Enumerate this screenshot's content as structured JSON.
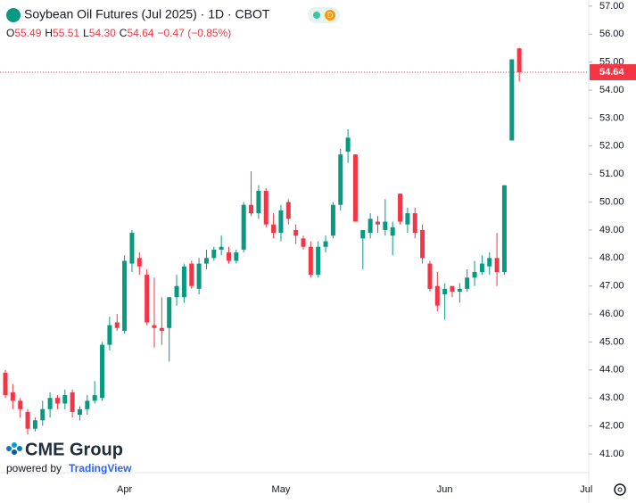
{
  "header": {
    "title": "Soybean Oil Futures (Jul 2025) · 1D · CBOT",
    "badge": "D",
    "ohlc": [
      {
        "key": "O",
        "value": "55.49"
      },
      {
        "key": "H",
        "value": "55.51"
      },
      {
        "key": "L",
        "value": "54.30"
      },
      {
        "key": "C",
        "value": "54.64"
      }
    ],
    "change": "−0.47 (−0.85%)"
  },
  "logo": {
    "brand": "CME Group",
    "powered": "powered by",
    "provider": "TradingView"
  },
  "chart_data": {
    "type": "candlestick",
    "categories": [
      null,
      null,
      null,
      null,
      null,
      null,
      null,
      null,
      null,
      null,
      null,
      null,
      null,
      null,
      null,
      null,
      "Apr",
      null,
      null,
      null,
      null,
      null,
      null,
      null,
      null,
      null,
      null,
      null,
      null,
      null,
      null,
      null,
      null,
      null,
      null,
      null,
      null,
      "May",
      null,
      null,
      null,
      null,
      null,
      null,
      null,
      null,
      null,
      null,
      null,
      null,
      null,
      null,
      null,
      null,
      null,
      null,
      null,
      null,
      null,
      "Jun",
      null,
      null,
      null,
      null,
      null,
      null,
      null,
      null,
      null,
      null,
      null,
      null,
      null,
      null,
      null,
      null,
      null,
      null,
      "Jul"
    ],
    "open": [
      43.9,
      43.2,
      42.9,
      42.5,
      41.9,
      42.2,
      42.6,
      43.0,
      42.8,
      43.2,
      42.4,
      42.6,
      42.9,
      43.0,
      44.9,
      45.7,
      45.4,
      47.8,
      48.0,
      47.4,
      45.6,
      45.5,
      45.5,
      46.6,
      46.6,
      47.8,
      46.9,
      47.8,
      48.0,
      48.3,
      48.2,
      47.9,
      48.3,
      49.9,
      49.6,
      50.4,
      49.2,
      48.9,
      50.0,
      49.0,
      48.7,
      48.4,
      47.4,
      48.4,
      48.8,
      49.9,
      51.8,
      51.7,
      48.7,
      48.9,
      49.3,
      49.0,
      48.8,
      50.3,
      49.2,
      49.6,
      49.0,
      47.8,
      47.0,
      46.7,
      47.0,
      46.8,
      46.9,
      47.3,
      47.5,
      47.7,
      48.0,
      47.5,
      52.2,
      55.49,
      null,
      null,
      null,
      null,
      null,
      null,
      null,
      null,
      null
    ],
    "high": [
      44.0,
      43.5,
      43.0,
      42.6,
      42.3,
      42.9,
      43.2,
      43.1,
      43.3,
      43.3,
      42.7,
      43.1,
      43.6,
      45.0,
      45.9,
      46.0,
      48.1,
      49.0,
      48.2,
      47.6,
      47.3,
      46.6,
      46.6,
      47.4,
      47.8,
      47.9,
      48.0,
      48.3,
      48.4,
      48.8,
      48.4,
      48.3,
      50.0,
      51.1,
      50.6,
      50.5,
      49.6,
      49.9,
      50.1,
      49.2,
      48.8,
      48.6,
      48.6,
      48.8,
      50.0,
      51.9,
      52.6,
      51.7,
      49.0,
      49.6,
      49.5,
      50.1,
      49.3,
      50.3,
      49.8,
      49.8,
      49.2,
      47.9,
      47.5,
      47.1,
      47.0,
      47.1,
      47.6,
      47.9,
      48.1,
      48.2,
      48.9,
      50.6,
      55.1,
      55.51,
      null,
      null,
      null,
      null,
      null,
      null,
      null,
      null,
      null
    ],
    "low": [
      43.0,
      42.6,
      42.3,
      41.7,
      41.8,
      42.0,
      42.3,
      42.6,
      42.6,
      42.3,
      42.2,
      42.4,
      42.8,
      42.9,
      44.7,
      45.4,
      45.3,
      47.5,
      47.4,
      45.6,
      44.8,
      44.9,
      44.3,
      46.3,
      46.4,
      46.9,
      46.7,
      47.6,
      47.9,
      48.1,
      47.8,
      47.8,
      48.2,
      49.5,
      49.4,
      49.1,
      48.7,
      48.6,
      49.2,
      48.5,
      48.3,
      47.3,
      47.3,
      48.2,
      48.7,
      49.7,
      51.4,
      49.3,
      47.6,
      48.7,
      48.9,
      48.8,
      48.1,
      49.2,
      48.9,
      48.7,
      47.8,
      46.8,
      46.1,
      45.8,
      46.6,
      46.4,
      46.8,
      47.0,
      47.4,
      47.4,
      47.0,
      47.4,
      52.2,
      54.3,
      null,
      null,
      null,
      null,
      null,
      null,
      null,
      null,
      null
    ],
    "close": [
      43.1,
      42.9,
      42.6,
      41.9,
      42.2,
      42.6,
      43.0,
      42.8,
      43.1,
      42.5,
      42.6,
      42.9,
      43.1,
      44.9,
      45.6,
      45.5,
      47.9,
      48.9,
      47.7,
      45.7,
      45.5,
      45.4,
      46.6,
      47.0,
      47.7,
      47.0,
      47.8,
      48.0,
      48.3,
      48.4,
      47.9,
      48.2,
      49.9,
      49.6,
      50.4,
      49.2,
      48.9,
      49.7,
      49.4,
      48.8,
      48.4,
      47.4,
      48.4,
      48.6,
      49.9,
      51.7,
      52.3,
      49.3,
      49.0,
      49.4,
      49.2,
      49.3,
      49.1,
      49.3,
      49.6,
      48.9,
      48.0,
      46.9,
      46.3,
      46.9,
      46.8,
      46.9,
      47.3,
      47.5,
      47.8,
      48.0,
      47.5,
      50.6,
      55.1,
      54.64,
      null,
      null,
      null,
      null,
      null,
      null,
      null,
      null,
      null
    ],
    "up_color": "#089981",
    "down_color": "#f23645",
    "ylim": [
      40.33,
      57.22
    ],
    "yticks": [
      {
        "value": 41,
        "label": "41.00"
      },
      {
        "value": 42,
        "label": "42.00"
      },
      {
        "value": 43,
        "label": "43.00"
      },
      {
        "value": 44,
        "label": "44.00"
      },
      {
        "value": 45,
        "label": "45.00"
      },
      {
        "value": 46,
        "label": "46.00"
      },
      {
        "value": 47,
        "label": "47.00"
      },
      {
        "value": 48,
        "label": "48.00"
      },
      {
        "value": 49,
        "label": "49.00"
      },
      {
        "value": 50,
        "label": "50.00"
      },
      {
        "value": 51,
        "label": "51.00"
      },
      {
        "value": 52,
        "label": "52.00"
      },
      {
        "value": 53,
        "label": "53.00"
      },
      {
        "value": 54,
        "label": "54.00"
      },
      {
        "value": 55,
        "label": "55.00"
      },
      {
        "value": 56,
        "label": "56.00"
      },
      {
        "value": 57,
        "label": "57.00"
      }
    ],
    "last_price_line": true
  }
}
